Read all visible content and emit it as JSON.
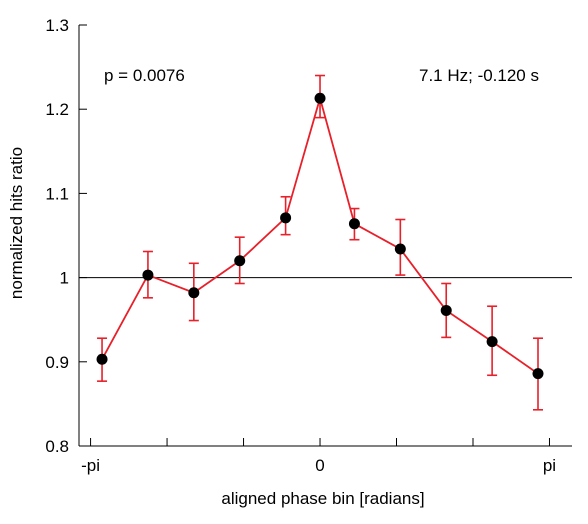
{
  "chart_data": {
    "type": "line",
    "title": "",
    "xlabel": "aligned phase bin [radians]",
    "ylabel": "normalized hits ratio",
    "xlim": [
      -3.3,
      3.45
    ],
    "ylim": [
      0.8,
      1.3
    ],
    "x_ticks": [
      {
        "value": -3.14159,
        "label": "-pi"
      },
      {
        "value": 0,
        "label": "0"
      },
      {
        "value": 3.14159,
        "label": "pi"
      }
    ],
    "y_ticks": [
      {
        "value": 0.8,
        "label": "0.8"
      },
      {
        "value": 0.9,
        "label": "0.9"
      },
      {
        "value": 1.0,
        "label": "1"
      },
      {
        "value": 1.1,
        "label": "1.1"
      },
      {
        "value": 1.2,
        "label": "1.2"
      },
      {
        "value": 1.3,
        "label": "1.3"
      }
    ],
    "reference_line": 1.0,
    "annotations": {
      "p_value": "p = 0.0076",
      "freq_lag": "7.1 Hz; -0.120 s"
    },
    "colors": {
      "line": "#e8202a",
      "marker": "#000000",
      "reference": "#000000"
    },
    "series": [
      {
        "x": [
          -2.9845,
          -2.3562,
          -1.7279,
          -1.0996,
          -0.4712,
          0,
          0.4712,
          1.0996,
          1.7279,
          2.3562,
          2.9845
        ],
        "y": [
          0.903,
          1.003,
          0.982,
          1.02,
          1.071,
          1.213,
          1.064,
          1.034,
          0.961,
          0.924,
          0.886
        ],
        "err_low": [
          0.877,
          0.976,
          0.949,
          0.993,
          1.051,
          1.19,
          1.045,
          1.003,
          0.929,
          0.884,
          0.843
        ],
        "err_high": [
          0.928,
          1.031,
          1.017,
          1.048,
          1.096,
          1.24,
          1.082,
          1.069,
          0.993,
          0.966,
          0.928
        ]
      }
    ]
  }
}
